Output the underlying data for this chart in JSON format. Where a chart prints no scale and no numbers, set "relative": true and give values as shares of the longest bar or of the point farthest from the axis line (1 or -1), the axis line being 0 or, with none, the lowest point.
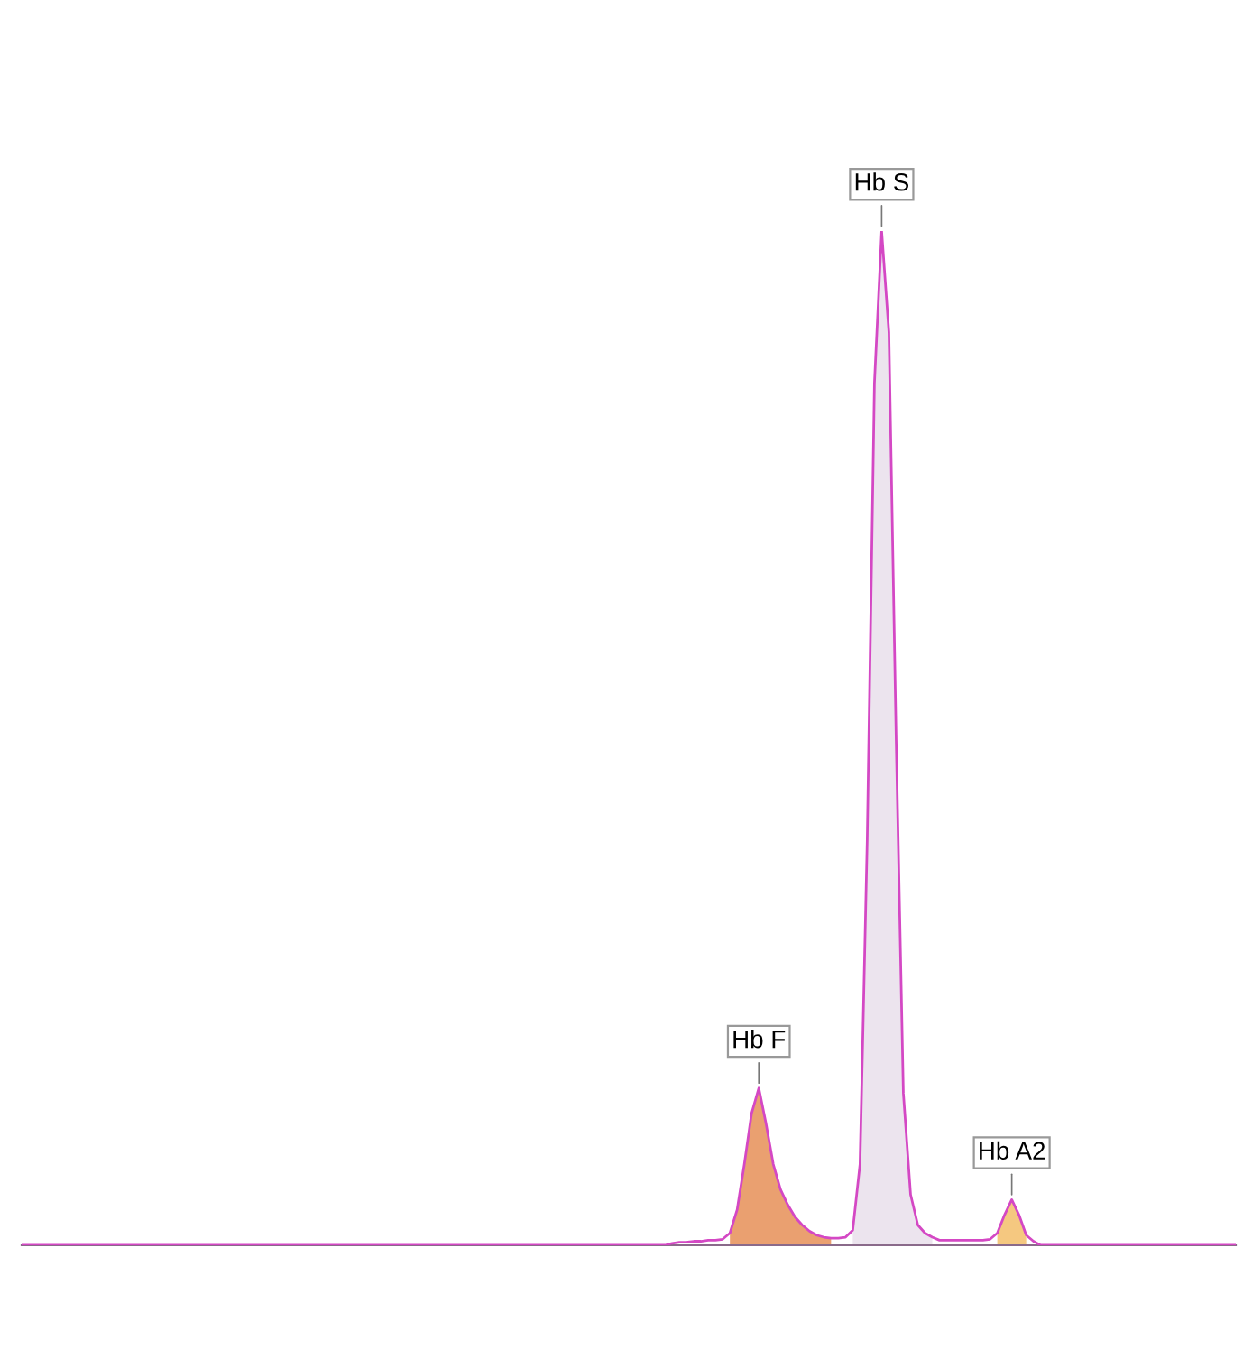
{
  "chart_data": {
    "type": "line",
    "relative": true,
    "categories": [
      null,
      null,
      null,
      null,
      null,
      null,
      null,
      null,
      null,
      null,
      null,
      null,
      null,
      null,
      null,
      null,
      null,
      null,
      null,
      null,
      null,
      null,
      null,
      null,
      null,
      null,
      null,
      null,
      null,
      null,
      null,
      null,
      null,
      null,
      null,
      null,
      null,
      null,
      null,
      null,
      null,
      null,
      null,
      null,
      null,
      null,
      null,
      null,
      null,
      null,
      null,
      null,
      null,
      null,
      null,
      null,
      null,
      null,
      null,
      null,
      null,
      null,
      null,
      null,
      null,
      null,
      null,
      null,
      null,
      null,
      null,
      null,
      null,
      null,
      null,
      null,
      null,
      null,
      null,
      null,
      null,
      null,
      null,
      null,
      null,
      null,
      null,
      null,
      null,
      null,
      null,
      null,
      null,
      null,
      null,
      null,
      null,
      null,
      null,
      null,
      null,
      null,
      null,
      null,
      null,
      null,
      null,
      null,
      null,
      null,
      null,
      null,
      null,
      null,
      null,
      null,
      null,
      null,
      null,
      null,
      null,
      null,
      null,
      null,
      null,
      null,
      null,
      null,
      null,
      null,
      null,
      null,
      null,
      null,
      null,
      null,
      null,
      null,
      null,
      null,
      null,
      null,
      null,
      null,
      null,
      null,
      null,
      null,
      null,
      null,
      null,
      null,
      null,
      null,
      null,
      null,
      null,
      null,
      null,
      null,
      null,
      null,
      null,
      null,
      null,
      null,
      null,
      null,
      null
    ],
    "series": [
      {
        "color": "#d448c4",
        "values": [
          0,
          0,
          0,
          0,
          0,
          0,
          0,
          0,
          0,
          0,
          0,
          0,
          0,
          0,
          0,
          0,
          0,
          0,
          0,
          0,
          0,
          0,
          0,
          0,
          0,
          0,
          0,
          0,
          0,
          0,
          0,
          0,
          0,
          0,
          0,
          0,
          0,
          0,
          0,
          0,
          0,
          0,
          0,
          0,
          0,
          0,
          0,
          0,
          0,
          0,
          0,
          0,
          0,
          0,
          0,
          0,
          0,
          0,
          0,
          0,
          0,
          0,
          0,
          0,
          0,
          0,
          0,
          0,
          0,
          0,
          0,
          0,
          0,
          0,
          0,
          0,
          0,
          0,
          0,
          0,
          0,
          0,
          0,
          0,
          0,
          0,
          0,
          0,
          0,
          0,
          0.002,
          0.003,
          0.003,
          0.004,
          0.004,
          0.005,
          0.005,
          0.006,
          0.012,
          0.035,
          0.08,
          0.13,
          0.155,
          0.12,
          0.08,
          0.055,
          0.04,
          0.028,
          0.02,
          0.014,
          0.01,
          0.008,
          0.007,
          0.007,
          0.008,
          0.015,
          0.08,
          0.4,
          0.85,
          1,
          0.9,
          0.5,
          0.15,
          0.05,
          0.02,
          0.012,
          0.008,
          0.005,
          0.005,
          0.005,
          0.005,
          0.005,
          0.005,
          0.005,
          0.006,
          0.012,
          0.03,
          0.045,
          0.03,
          0.01,
          0.004,
          0,
          0,
          0,
          0,
          0,
          0,
          0,
          0,
          0,
          0,
          0,
          0,
          0,
          0,
          0,
          0,
          0,
          0,
          0,
          0,
          0,
          0,
          0,
          0,
          0,
          0,
          0,
          0
        ]
      },
      {
        "type": "area",
        "color": "#ece4ee",
        "values": [
          null,
          null,
          null,
          null,
          null,
          null,
          null,
          null,
          null,
          null,
          null,
          null,
          null,
          null,
          null,
          null,
          null,
          null,
          null,
          null,
          null,
          null,
          null,
          null,
          null,
          null,
          null,
          null,
          null,
          null,
          null,
          null,
          null,
          null,
          null,
          null,
          null,
          null,
          null,
          null,
          null,
          null,
          null,
          null,
          null,
          null,
          null,
          null,
          null,
          null,
          null,
          null,
          null,
          null,
          null,
          null,
          null,
          null,
          null,
          null,
          null,
          null,
          null,
          null,
          null,
          null,
          null,
          null,
          null,
          null,
          null,
          null,
          null,
          null,
          null,
          null,
          null,
          null,
          null,
          null,
          null,
          null,
          null,
          null,
          null,
          null,
          null,
          null,
          null,
          null,
          null,
          null,
          null,
          null,
          null,
          null,
          null,
          null,
          null,
          null,
          null,
          null,
          null,
          null,
          null,
          null,
          null,
          null,
          null,
          null,
          null,
          null,
          null,
          null,
          null,
          0.015,
          0.08,
          0.4,
          0.85,
          1,
          0.9,
          0.5,
          0.15,
          0.05,
          0.02,
          0.012,
          0.008,
          null,
          null,
          null,
          null,
          null,
          null,
          null,
          null,
          null,
          null,
          null,
          null,
          null,
          null,
          null,
          null,
          null,
          null,
          null,
          null,
          null,
          null,
          null,
          null,
          null,
          null,
          null,
          null,
          null,
          null,
          null,
          null,
          null,
          null,
          null,
          null,
          null,
          null,
          null,
          null,
          null,
          null
        ]
      },
      {
        "type": "area",
        "color": "#eaa070",
        "values": [
          null,
          null,
          null,
          null,
          null,
          null,
          null,
          null,
          null,
          null,
          null,
          null,
          null,
          null,
          null,
          null,
          null,
          null,
          null,
          null,
          null,
          null,
          null,
          null,
          null,
          null,
          null,
          null,
          null,
          null,
          null,
          null,
          null,
          null,
          null,
          null,
          null,
          null,
          null,
          null,
          null,
          null,
          null,
          null,
          null,
          null,
          null,
          null,
          null,
          null,
          null,
          null,
          null,
          null,
          null,
          null,
          null,
          null,
          null,
          null,
          null,
          null,
          null,
          null,
          null,
          null,
          null,
          null,
          null,
          null,
          null,
          null,
          null,
          null,
          null,
          null,
          null,
          null,
          null,
          null,
          null,
          null,
          null,
          null,
          null,
          null,
          null,
          null,
          null,
          null,
          null,
          null,
          null,
          null,
          null,
          null,
          null,
          null,
          0.012,
          0.035,
          0.08,
          0.13,
          0.155,
          0.12,
          0.08,
          0.055,
          0.04,
          0.028,
          0.02,
          0.014,
          0.01,
          0.008,
          0.007,
          null,
          null,
          null,
          null,
          null,
          null,
          null,
          null,
          null,
          null,
          null,
          null,
          null,
          null,
          null,
          null,
          null,
          null,
          null,
          null,
          null,
          null,
          null,
          null,
          null,
          null,
          null,
          null,
          null,
          null,
          null,
          null,
          null,
          null,
          null,
          null,
          null,
          null,
          null,
          null,
          null,
          null,
          null,
          null,
          null,
          null,
          null,
          null,
          null,
          null,
          null,
          null,
          null,
          null,
          null,
          null
        ]
      },
      {
        "type": "area",
        "color": "#f5c880",
        "values": [
          null,
          null,
          null,
          null,
          null,
          null,
          null,
          null,
          null,
          null,
          null,
          null,
          null,
          null,
          null,
          null,
          null,
          null,
          null,
          null,
          null,
          null,
          null,
          null,
          null,
          null,
          null,
          null,
          null,
          null,
          null,
          null,
          null,
          null,
          null,
          null,
          null,
          null,
          null,
          null,
          null,
          null,
          null,
          null,
          null,
          null,
          null,
          null,
          null,
          null,
          null,
          null,
          null,
          null,
          null,
          null,
          null,
          null,
          null,
          null,
          null,
          null,
          null,
          null,
          null,
          null,
          null,
          null,
          null,
          null,
          null,
          null,
          null,
          null,
          null,
          null,
          null,
          null,
          null,
          null,
          null,
          null,
          null,
          null,
          null,
          null,
          null,
          null,
          null,
          null,
          null,
          null,
          null,
          null,
          null,
          null,
          null,
          null,
          null,
          null,
          null,
          null,
          null,
          null,
          null,
          null,
          null,
          null,
          null,
          null,
          null,
          null,
          null,
          null,
          null,
          null,
          null,
          null,
          null,
          null,
          null,
          null,
          null,
          null,
          null,
          null,
          null,
          null,
          null,
          null,
          null,
          null,
          null,
          null,
          null,
          0.012,
          0.03,
          0.045,
          0.03,
          0.01,
          null,
          null,
          null,
          null,
          null,
          null,
          null,
          null,
          null,
          null,
          null,
          null,
          null,
          null,
          null,
          null,
          null,
          null,
          null,
          null,
          null,
          null,
          null,
          null,
          null,
          null,
          null,
          null,
          null
        ]
      }
    ],
    "annotations": [
      "Hb S",
      "Hb F",
      "Hb A2"
    ]
  }
}
